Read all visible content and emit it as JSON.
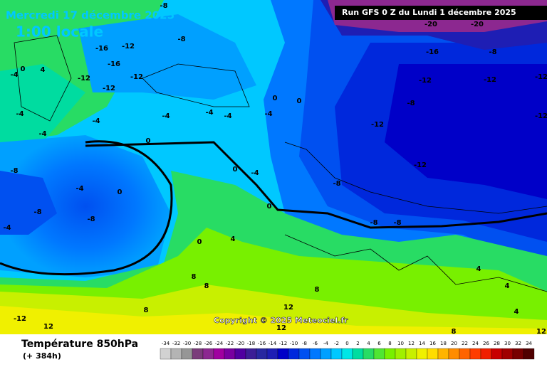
{
  "map": {
    "title": "Mercredi 17 décembre 2025",
    "time": "1:00 locale",
    "run": "Run GFS 0 Z du Lundi 1 décembre 2025",
    "copyright": "Copyright © 2025 Meteociel.fr",
    "contour_labels": [
      -8,
      -20,
      -20,
      -16,
      -12,
      -16,
      -8,
      -16,
      -8,
      -12,
      -12,
      -12,
      -12,
      -12,
      -12,
      -4,
      0,
      4,
      -4,
      -4,
      -4,
      -4,
      -4,
      -4,
      0,
      0,
      -8,
      -12,
      -12,
      -4,
      -8,
      -4,
      0,
      -8,
      -8,
      -4,
      0,
      0,
      -4,
      -8,
      -12,
      0,
      -8,
      -8,
      4,
      0,
      8,
      8,
      8,
      8,
      12,
      -12,
      12,
      12,
      8,
      4,
      4,
      4,
      12
    ]
  },
  "legend": {
    "title": "Température 850hPa",
    "lead": "(+ 384h)",
    "scale": [
      -34,
      -32,
      -30,
      -28,
      -26,
      -24,
      -22,
      -20,
      -18,
      -16,
      -14,
      -12,
      -10,
      -8,
      -6,
      -4,
      -2,
      0,
      2,
      4,
      6,
      8,
      10,
      12,
      14,
      16,
      18,
      20,
      22,
      24,
      26,
      28,
      30,
      32,
      34
    ],
    "colors": [
      "#d2d2d2",
      "#b4b4b4",
      "#969696",
      "#7a3c7a",
      "#8c2890",
      "#a000a0",
      "#7800a0",
      "#5000a0",
      "#3c1e96",
      "#2828a0",
      "#1e1eb4",
      "#0000c8",
      "#0028dc",
      "#0050f0",
      "#0078ff",
      "#00a0ff",
      "#00c8ff",
      "#00e6e6",
      "#00dca0",
      "#28dc64",
      "#50e632",
      "#78f000",
      "#a0f000",
      "#c8f000",
      "#f0f000",
      "#ffdc00",
      "#ffb400",
      "#ff8c00",
      "#ff6400",
      "#ff3c00",
      "#f01e00",
      "#c80000",
      "#a00000",
      "#780000",
      "#500000"
    ]
  }
}
